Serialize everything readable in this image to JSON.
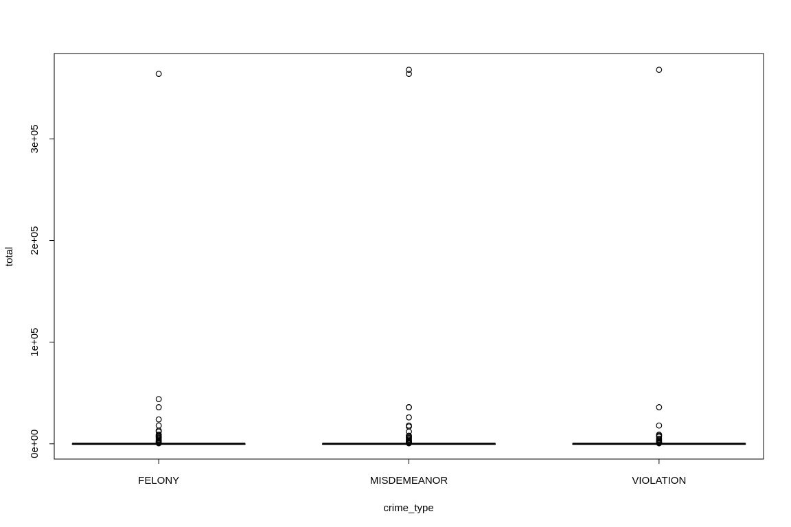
{
  "chart_data": {
    "type": "box",
    "categories": [
      "FELONY",
      "MISDEMEANOR",
      "VIOLATION"
    ],
    "xlabel": "crime_type",
    "ylabel": "total",
    "ylim": [
      -15000,
      384000
    ],
    "yticks": [
      0,
      100000,
      200000,
      300000
    ],
    "ytick_labels": [
      "0e+00",
      "1e+05",
      "2e+05",
      "3e+05"
    ],
    "series": [
      {
        "category": "FELONY",
        "median": 0,
        "q1": 0,
        "q3": 0,
        "whisker_low": 0,
        "whisker_high": 0,
        "outliers": [
          364000,
          44000,
          36000,
          24000,
          18000,
          13000,
          12000,
          9000,
          8000,
          7000,
          6000,
          5000,
          4000,
          3000,
          2500,
          2000,
          1500,
          1000,
          500
        ]
      },
      {
        "category": "MISDEMEANOR",
        "median": 0,
        "q1": 0,
        "q3": 0,
        "whisker_low": 0,
        "whisker_high": 0,
        "outliers": [
          368000,
          364000,
          36000,
          36000,
          26000,
          18000,
          17000,
          12000,
          8000,
          7000,
          6000,
          5000,
          4000,
          3000,
          2500,
          2000,
          1500,
          1000,
          500
        ]
      },
      {
        "category": "VIOLATION",
        "median": 0,
        "q1": 0,
        "q3": 0,
        "whisker_low": 0,
        "whisker_high": 0,
        "outliers": [
          368000,
          36000,
          18000,
          9000,
          8000,
          7000,
          5000,
          4000,
          3000,
          2000,
          1500,
          1000,
          500
        ]
      }
    ]
  }
}
